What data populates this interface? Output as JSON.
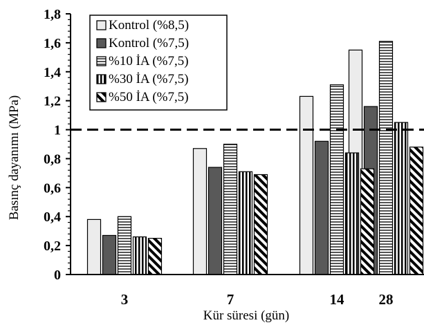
{
  "chart_data": {
    "type": "bar",
    "title": "",
    "xlabel": "Kür süresi (gün)",
    "ylabel": "Basınç dayanımı (MPa)",
    "ylim": [
      0,
      1.8
    ],
    "yticks": [
      "0",
      "0,2",
      "0,4",
      "0,6",
      "0,8",
      "1",
      "1,2",
      "1,4",
      "1,6",
      "1,8"
    ],
    "categories": [
      "3",
      "7",
      "14",
      "28"
    ],
    "reference_line": {
      "value": 1.0,
      "style": "dashed"
    },
    "legend_position": "top-left",
    "grid": false,
    "series": [
      {
        "name": "Kontrol (%8,5)",
        "pattern": "light-gray",
        "values": [
          0.38,
          0.87,
          1.23,
          1.55
        ]
      },
      {
        "name": "Kontrol (%7,5)",
        "pattern": "dark-gray",
        "values": [
          0.27,
          0.74,
          0.92,
          1.16
        ]
      },
      {
        "name": "%10 İA (%7,5)",
        "pattern": "horizontal-stripes",
        "values": [
          0.4,
          0.9,
          1.31,
          1.61
        ]
      },
      {
        "name": "%30 İA (%7,5)",
        "pattern": "vertical-stripes",
        "values": [
          0.26,
          0.71,
          0.84,
          1.05
        ]
      },
      {
        "name": "%50 İA (%7,5)",
        "pattern": "diagonal-stripes",
        "values": [
          0.25,
          0.69,
          0.73,
          0.88
        ]
      }
    ]
  }
}
